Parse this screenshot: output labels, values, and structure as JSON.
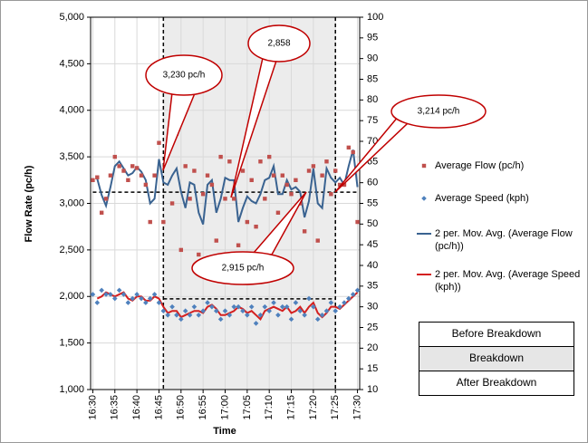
{
  "chart_data": {
    "type": "line",
    "ylabel": "Flow Rate (pc/h)",
    "xlabel": "Time",
    "categories": [
      "16:30",
      null,
      null,
      null,
      null,
      "16:35",
      null,
      null,
      null,
      null,
      "16:40",
      null,
      null,
      null,
      null,
      "16:45",
      null,
      null,
      null,
      null,
      "16:50",
      null,
      null,
      null,
      null,
      "16:55",
      null,
      null,
      null,
      null,
      "17:00",
      null,
      null,
      null,
      null,
      "17:05",
      null,
      null,
      null,
      null,
      "17:10",
      null,
      null,
      null,
      null,
      "17:15",
      null,
      null,
      null,
      null,
      "17:20",
      null,
      null,
      null,
      null,
      "17:25",
      null,
      null,
      null,
      null,
      "17:30"
    ],
    "ylim": [
      1000,
      5000
    ],
    "yticks": [
      {
        "value": 1000,
        "label": "1,000"
      },
      {
        "value": 1500,
        "label": "1,500"
      },
      {
        "value": 2000,
        "label": "2,000"
      },
      {
        "value": 2500,
        "label": "2,500"
      },
      {
        "value": 3000,
        "label": "3,000"
      },
      {
        "value": 3500,
        "label": "3,500"
      },
      {
        "value": 4000,
        "label": "4,000"
      },
      {
        "value": 4500,
        "label": "4,500"
      },
      {
        "value": 5000,
        "label": "5,000"
      }
    ],
    "y2lim": [
      10,
      100
    ],
    "y2ticks": [
      10,
      15,
      20,
      25,
      30,
      35,
      40,
      45,
      50,
      55,
      60,
      65,
      70,
      75,
      80,
      85,
      90,
      95,
      100
    ],
    "grid": true,
    "shaded_range": [
      16,
      55
    ],
    "reference_lines": [
      {
        "value": 3120,
        "from": 0,
        "to": 60
      },
      {
        "value": 1975,
        "from": 16,
        "to": 55
      }
    ],
    "series": [
      {
        "name": "Average Flow (pc/h)",
        "style": "square",
        "color": "#c0504d",
        "axis": "y",
        "values": [
          3250,
          3280,
          2900,
          3050,
          3300,
          3500,
          3400,
          3350,
          3250,
          3400,
          3380,
          3300,
          3200,
          2800,
          3300,
          3650,
          2800,
          3600,
          3000,
          3750,
          2500,
          3400,
          3050,
          3350,
          2450,
          3100,
          3300,
          3200,
          2600,
          3500,
          3050,
          3450,
          3050,
          2550,
          3350,
          2800,
          3250,
          2750,
          3450,
          3050,
          3500,
          3300,
          2900,
          3300,
          3200,
          3100,
          3250,
          3000,
          2700,
          3350,
          3400,
          2600,
          3300,
          3450,
          3100,
          3350,
          3200,
          3200,
          3600,
          3550,
          2800
        ]
      },
      {
        "name": "Average Speed (kph)",
        "style": "diamond",
        "color": "#4f81bd",
        "axis": "y2",
        "values": [
          33,
          31,
          34,
          33,
          33,
          32,
          34,
          33,
          31,
          32,
          33,
          32,
          31,
          32,
          33,
          31,
          29,
          28,
          30,
          28,
          27,
          29,
          28,
          30,
          28,
          29,
          31,
          30,
          29,
          27,
          29,
          28,
          30,
          30,
          29,
          28,
          30,
          26,
          28,
          30,
          29,
          31,
          28,
          30,
          30,
          27,
          31,
          29,
          28,
          32,
          30,
          27,
          28,
          29,
          31,
          29,
          30,
          31,
          32,
          33,
          34
        ]
      },
      {
        "name": "2 per. Mov. Avg. (Average Flow (pc/h))",
        "style": "line",
        "color": "#3a6391",
        "axis": "y",
        "values": [
          null,
          3265,
          3090,
          2975,
          3175,
          3400,
          3450,
          3375,
          3300,
          3325,
          3390,
          3340,
          3250,
          3000,
          3050,
          3475,
          3225,
          3200,
          3300,
          3375,
          3125,
          2950,
          3225,
          3200,
          2900,
          2775,
          3200,
          3250,
          2900,
          3050,
          3275,
          3250,
          3250,
          2800,
          2950,
          3075,
          3025,
          3000,
          3100,
          3250,
          3275,
          3400,
          3100,
          3100,
          3250,
          3150,
          3175,
          3125,
          2850,
          3025,
          3375,
          3000,
          2950,
          3375,
          3275,
          3225,
          3275,
          3200,
          3400,
          3575,
          3175
        ]
      },
      {
        "name": "2 per. Mov. Avg. (Average Speed (kph))",
        "style": "line",
        "color": "#d42020",
        "axis": "y2",
        "values": [
          null,
          32,
          32.5,
          33.5,
          33,
          32.5,
          33,
          33.5,
          32,
          31.5,
          32.5,
          32.5,
          31.5,
          31.5,
          32.5,
          32,
          30,
          28.5,
          29,
          29,
          27.5,
          28,
          28.5,
          29,
          29,
          28.5,
          30,
          30.5,
          29.5,
          28,
          28,
          28.5,
          29,
          30,
          29.5,
          28.5,
          29,
          28,
          27,
          29,
          29.5,
          30,
          29.5,
          29,
          30,
          28.5,
          29,
          30,
          28.5,
          30,
          31,
          28.5,
          27.5,
          28.5,
          30,
          30,
          29.5,
          30.5,
          31.5,
          32.5,
          33.5
        ]
      }
    ],
    "annotations": [
      "3,230  pc/h",
      "2,858",
      "3,214 pc/h",
      "2,915 pc/h"
    ],
    "phases": [
      "Before Breakdown",
      "Breakdown",
      "After Breakdown"
    ]
  }
}
